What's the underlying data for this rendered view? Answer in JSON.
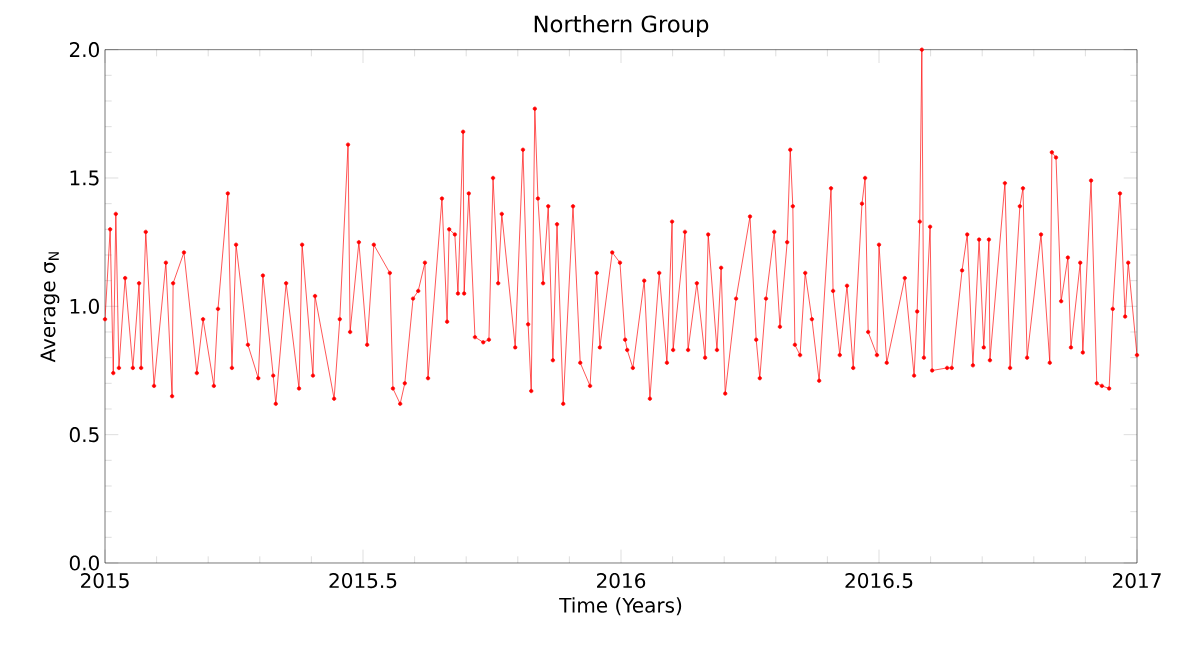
{
  "chart_data": {
    "type": "line",
    "title": "Northern Group",
    "xlabel": "Time (Years)",
    "ylabel": "Average σ$_{N}$",
    "x": [
      2015.0,
      2015.01,
      2015.016,
      2015.021,
      2015.027,
      2015.039,
      2015.054,
      2015.066,
      2015.07,
      2015.079,
      2015.095,
      2015.118,
      2015.13,
      2015.132,
      2015.153,
      2015.178,
      2015.19,
      2015.211,
      2015.219,
      2015.238,
      2015.246,
      2015.254,
      2015.277,
      2015.297,
      2015.306,
      2015.326,
      2015.331,
      2015.351,
      2015.376,
      2015.382,
      2015.403,
      2015.407,
      2015.444,
      2015.455,
      2015.471,
      2015.475,
      2015.492,
      2015.508,
      2015.521,
      2015.552,
      2015.558,
      2015.572,
      2015.581,
      2015.597,
      2015.607,
      2015.62,
      2015.626,
      2015.653,
      2015.663,
      2015.667,
      2015.678,
      2015.684,
      2015.694,
      2015.696,
      2015.705,
      2015.717,
      2015.733,
      2015.744,
      2015.752,
      2015.762,
      2015.769,
      2015.795,
      2015.81,
      2015.82,
      2015.826,
      2015.833,
      2015.839,
      2015.849,
      2015.859,
      2015.868,
      2015.876,
      2015.888,
      2015.907,
      2015.921,
      2015.94,
      2015.953,
      2015.959,
      2015.983,
      2015.998,
      2016.008,
      2016.012,
      2016.023,
      2016.045,
      2016.056,
      2016.074,
      2016.089,
      2016.099,
      2016.101,
      2016.124,
      2016.13,
      2016.147,
      2016.163,
      2016.169,
      2016.186,
      2016.194,
      2016.202,
      2016.223,
      2016.25,
      2016.262,
      2016.269,
      2016.281,
      2016.297,
      2016.308,
      2016.322,
      2016.328,
      2016.333,
      2016.337,
      2016.347,
      2016.357,
      2016.37,
      2016.384,
      2016.407,
      2016.411,
      2016.424,
      2016.438,
      2016.45,
      2016.467,
      2016.473,
      2016.479,
      2016.496,
      2016.5,
      2016.515,
      2016.55,
      2016.568,
      2016.574,
      2016.579,
      2016.583,
      2016.587,
      2016.599,
      2016.603,
      2016.632,
      2016.641,
      2016.661,
      2016.671,
      2016.682,
      2016.694,
      2016.703,
      2016.713,
      2016.715,
      2016.744,
      2016.754,
      2016.773,
      2016.779,
      2016.787,
      2016.814,
      2016.831,
      2016.835,
      2016.843,
      2016.853,
      2016.866,
      2016.872,
      2016.89,
      2016.895,
      2016.911,
      2016.922,
      2016.932,
      2016.946,
      2016.953,
      2016.967,
      2016.977,
      2016.983,
      2017.0
    ],
    "series": [
      {
        "color": "#ff0000",
        "values": [
          0.95,
          1.3,
          0.74,
          1.36,
          0.76,
          1.11,
          0.76,
          1.09,
          0.76,
          1.29,
          0.69,
          1.17,
          0.65,
          1.09,
          1.21,
          0.74,
          0.95,
          0.69,
          0.99,
          1.44,
          0.76,
          1.24,
          0.85,
          0.72,
          1.12,
          0.73,
          0.62,
          1.09,
          0.68,
          1.24,
          0.73,
          1.04,
          0.64,
          0.95,
          1.63,
          0.9,
          1.25,
          0.85,
          1.24,
          1.13,
          0.68,
          0.62,
          0.7,
          1.03,
          1.06,
          1.17,
          0.72,
          1.42,
          0.94,
          1.3,
          1.28,
          1.05,
          1.68,
          1.05,
          1.44,
          0.88,
          0.86,
          0.87,
          1.5,
          1.09,
          1.36,
          0.84,
          1.61,
          0.93,
          0.67,
          1.77,
          1.42,
          1.09,
          1.39,
          0.79,
          1.32,
          0.62,
          1.39,
          0.78,
          0.69,
          1.13,
          0.84,
          1.21,
          1.17,
          0.87,
          0.83,
          0.76,
          1.1,
          0.64,
          1.13,
          0.78,
          1.33,
          0.83,
          1.29,
          0.83,
          1.09,
          0.8,
          1.28,
          0.83,
          1.15,
          0.66,
          1.03,
          1.35,
          0.87,
          0.72,
          1.03,
          1.29,
          0.92,
          1.25,
          1.61,
          1.39,
          0.85,
          0.81,
          1.13,
          0.95,
          0.71,
          1.46,
          1.06,
          0.81,
          1.08,
          0.76,
          1.4,
          1.5,
          0.9,
          0.81,
          1.24,
          0.78,
          1.11,
          0.73,
          0.98,
          1.33,
          2.0,
          0.8,
          1.31,
          0.75,
          0.76,
          0.76,
          1.14,
          1.28,
          0.77,
          1.26,
          0.84,
          1.26,
          0.79,
          1.48,
          0.76,
          1.39,
          1.46,
          0.8,
          1.28,
          0.78,
          1.6,
          1.58,
          1.02,
          1.19,
          0.84,
          1.17,
          0.82,
          1.49,
          0.7,
          0.69,
          0.68,
          0.99,
          1.44,
          0.96,
          1.17,
          0.81
        ]
      }
    ],
    "xlim": [
      2015,
      2017
    ],
    "ylim": [
      0,
      2
    ],
    "xticks": [
      2015,
      2015.5,
      2016,
      2016.5,
      2017
    ],
    "yticks": [
      {
        "value": 0,
        "label": "0.0"
      },
      {
        "value": 0.5,
        "label": "0.5"
      },
      {
        "value": 1,
        "label": "1.0"
      },
      {
        "value": 1.5,
        "label": "1.5"
      },
      {
        "value": 2,
        "label": "2.0"
      }
    ],
    "grid": false,
    "marker": "circle",
    "line_style": "solid"
  }
}
